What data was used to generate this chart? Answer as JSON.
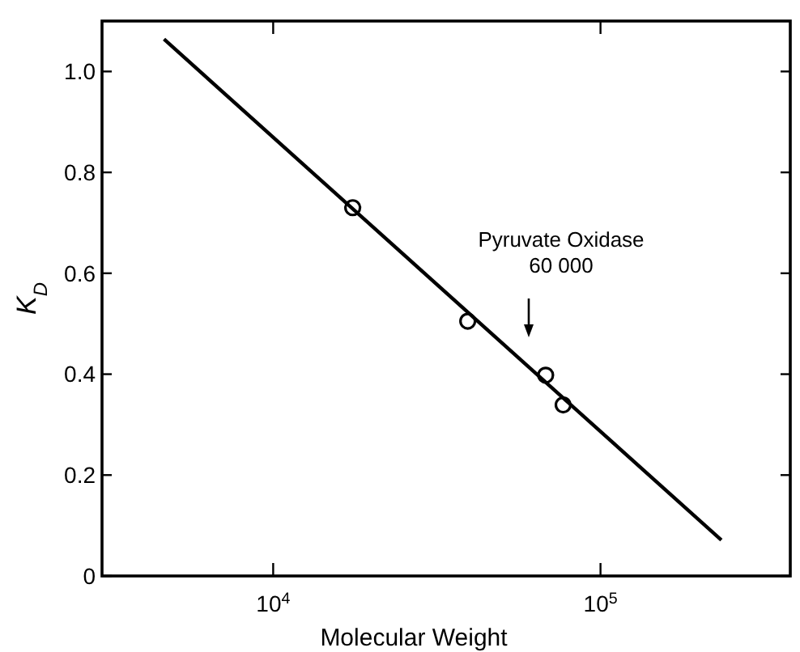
{
  "chart_data": {
    "type": "scatter",
    "xlabel": "Molecular Weight",
    "ylabel": "K$_{D}$",
    "log": "x",
    "xlim": [
      3000,
      380000
    ],
    "ylim": [
      0,
      1.1
    ],
    "xticks": [
      {
        "value": 10000,
        "label": "10$^{4}$"
      },
      {
        "value": 100000,
        "label": "10$^{5}$"
      }
    ],
    "yticks": [
      0,
      0.2,
      0.4,
      0.6,
      0.8,
      {
        "value": 1,
        "label": "1.0"
      }
    ],
    "grid": false,
    "series": [
      {
        "color": "#000000",
        "marker": "circle",
        "x": [
          17500,
          39300,
          68000,
          76900
        ],
        "values": [
          0.73,
          0.505,
          0.398,
          0.339
        ]
      },
      {
        "type": "line",
        "color": "#000000",
        "line_style": "solid",
        "x": [
          4640,
          234000
        ],
        "values": [
          1.064,
          0.071
        ]
      }
    ],
    "annotations": [
      "Pyruvate Oxidase\n60 000"
    ]
  }
}
